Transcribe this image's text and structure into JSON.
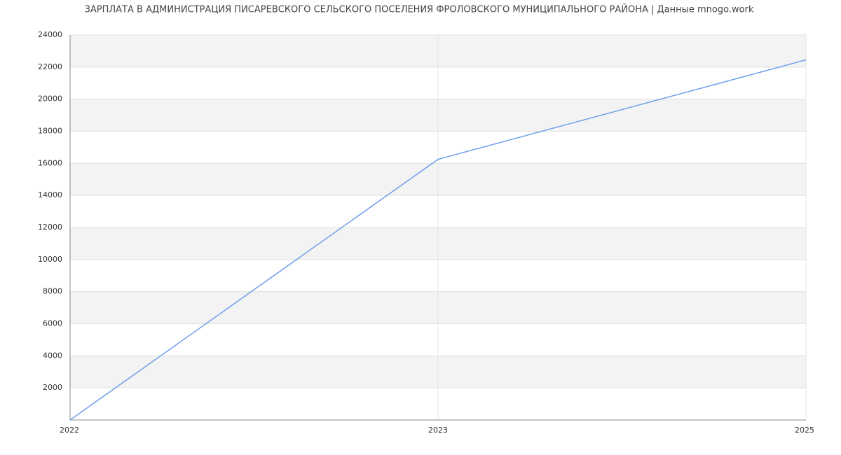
{
  "chart_data": {
    "type": "line",
    "title": "ЗАРПЛАТА В АДМИНИСТРАЦИЯ ПИСАРЕВСКОГО СЕЛЬСКОГО ПОСЕЛЕНИЯ ФРОЛОВСКОГО МУНИЦИПАЛЬНОГО РАЙОНА | Данные mnogo.work",
    "categories": [
      "2022",
      "2023",
      "2025"
    ],
    "values": [
      0,
      16250,
      22450
    ],
    "color": "#6d9eeb",
    "ylim": [
      0,
      24000
    ],
    "yticks": [
      2000,
      4000,
      6000,
      8000,
      10000,
      12000,
      14000,
      16000,
      18000,
      20000,
      22000,
      24000
    ],
    "grid": true
  }
}
